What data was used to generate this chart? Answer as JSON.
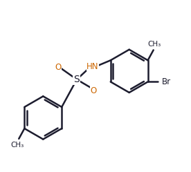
{
  "bg_color": "#ffffff",
  "line_color": "#1c1c2e",
  "ring_color": "#1c1c2e",
  "o_color": "#cc6600",
  "n_color": "#cc6600",
  "s_color": "#1c1c2e",
  "br_color": "#1c1c2e",
  "bond_width": 1.8,
  "figsize": [
    2.76,
    2.49
  ],
  "dpi": 100,
  "xlim": [
    0,
    10
  ],
  "ylim": [
    0,
    9
  ]
}
